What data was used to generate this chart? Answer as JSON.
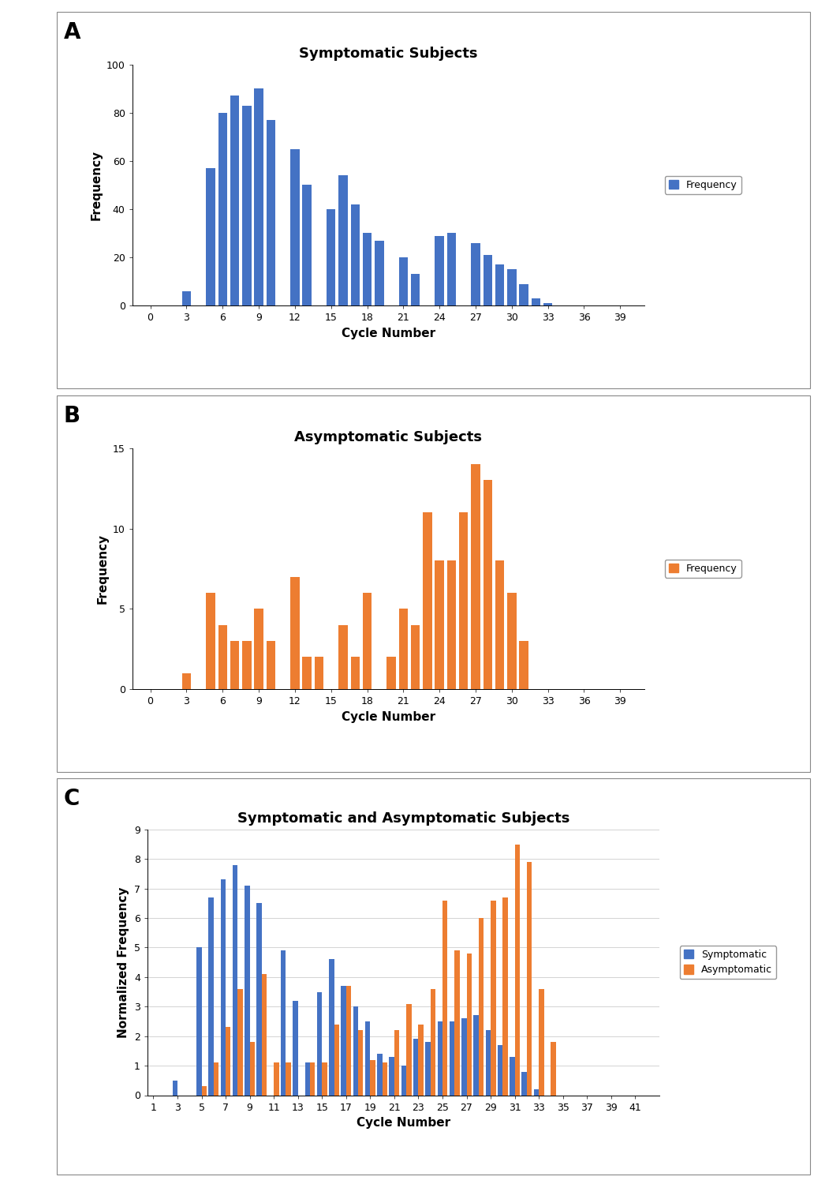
{
  "panel_A": {
    "title": "Symptomatic Subjects",
    "xlabel": "Cycle Number",
    "ylabel": "Frequency",
    "color": "#4472C4",
    "xticks": [
      0,
      3,
      6,
      9,
      12,
      15,
      18,
      21,
      24,
      27,
      30,
      33,
      36,
      39
    ],
    "ylim": [
      0,
      100
    ],
    "yticks": [
      0,
      20,
      40,
      60,
      80,
      100
    ],
    "cycles": [
      3,
      4,
      5,
      6,
      7,
      8,
      9,
      10,
      11,
      12,
      13,
      14,
      15,
      16,
      17,
      18,
      19,
      20,
      21,
      22,
      23,
      24,
      25,
      26,
      27,
      28,
      29,
      30,
      31,
      32,
      33
    ],
    "values": [
      6,
      0,
      57,
      80,
      87,
      83,
      90,
      77,
      0,
      65,
      50,
      0,
      40,
      54,
      42,
      30,
      27,
      0,
      20,
      13,
      0,
      29,
      30,
      0,
      26,
      21,
      17,
      15,
      9,
      3,
      1
    ]
  },
  "panel_B": {
    "title": "Asymptomatic Subjects",
    "xlabel": "Cycle Number",
    "ylabel": "Frequency",
    "color": "#ED7D31",
    "xticks": [
      0,
      3,
      6,
      9,
      12,
      15,
      18,
      21,
      24,
      27,
      30,
      33,
      36,
      39
    ],
    "ylim": [
      0,
      15
    ],
    "yticks": [
      0,
      5,
      10,
      15
    ],
    "cycles": [
      3,
      4,
      5,
      6,
      7,
      8,
      9,
      10,
      11,
      12,
      13,
      14,
      15,
      16,
      17,
      18,
      19,
      20,
      21,
      22,
      23,
      24,
      25,
      26,
      27,
      28,
      29,
      30,
      31,
      32,
      33
    ],
    "values": [
      1,
      0,
      6,
      4,
      3,
      3,
      5,
      3,
      0,
      7,
      2,
      2,
      0,
      4,
      2,
      6,
      0,
      2,
      5,
      4,
      11,
      8,
      8,
      11,
      14,
      13,
      8,
      6,
      3,
      0,
      0
    ]
  },
  "panel_C": {
    "title": "Symptomatic and Asymptomatic Subjects",
    "xlabel": "Cycle Number",
    "ylabel": "Normalized Frequency",
    "color_symp": "#4472C4",
    "color_asymp": "#ED7D31",
    "xticks": [
      1,
      3,
      5,
      7,
      9,
      11,
      13,
      15,
      17,
      19,
      21,
      23,
      25,
      27,
      29,
      31,
      33,
      35,
      37,
      39,
      41
    ],
    "ylim": [
      0,
      9
    ],
    "yticks": [
      0,
      1,
      2,
      3,
      4,
      5,
      6,
      7,
      8,
      9
    ],
    "cycles": [
      3,
      4,
      5,
      6,
      7,
      8,
      9,
      10,
      11,
      12,
      13,
      14,
      15,
      16,
      17,
      18,
      19,
      20,
      21,
      22,
      23,
      24,
      25,
      26,
      27,
      28,
      29,
      30,
      31,
      32,
      33,
      34,
      35
    ],
    "symp_values": [
      0.5,
      0,
      5.0,
      6.7,
      7.3,
      7.8,
      7.1,
      6.5,
      0,
      4.9,
      3.2,
      1.1,
      3.5,
      4.6,
      3.7,
      3.0,
      2.5,
      1.4,
      1.3,
      1.0,
      1.9,
      1.8,
      2.5,
      2.5,
      2.6,
      2.7,
      2.2,
      1.7,
      1.3,
      0.8,
      0.2,
      0,
      0
    ],
    "asymp_values": [
      0,
      0,
      0.3,
      1.1,
      2.3,
      3.6,
      1.8,
      4.1,
      1.1,
      1.1,
      0,
      1.1,
      1.1,
      2.4,
      3.7,
      2.2,
      1.2,
      1.1,
      2.2,
      3.1,
      2.4,
      3.6,
      6.6,
      4.9,
      4.8,
      6.0,
      6.6,
      6.7,
      8.5,
      7.9,
      3.6,
      1.8,
      0
    ]
  },
  "label_fontsize": 11,
  "title_fontsize": 13,
  "tick_fontsize": 9,
  "legend_fontsize": 9,
  "panel_label_fontsize": 20,
  "background_color": "#FFFFFF",
  "box_color": "#AAAAAA"
}
